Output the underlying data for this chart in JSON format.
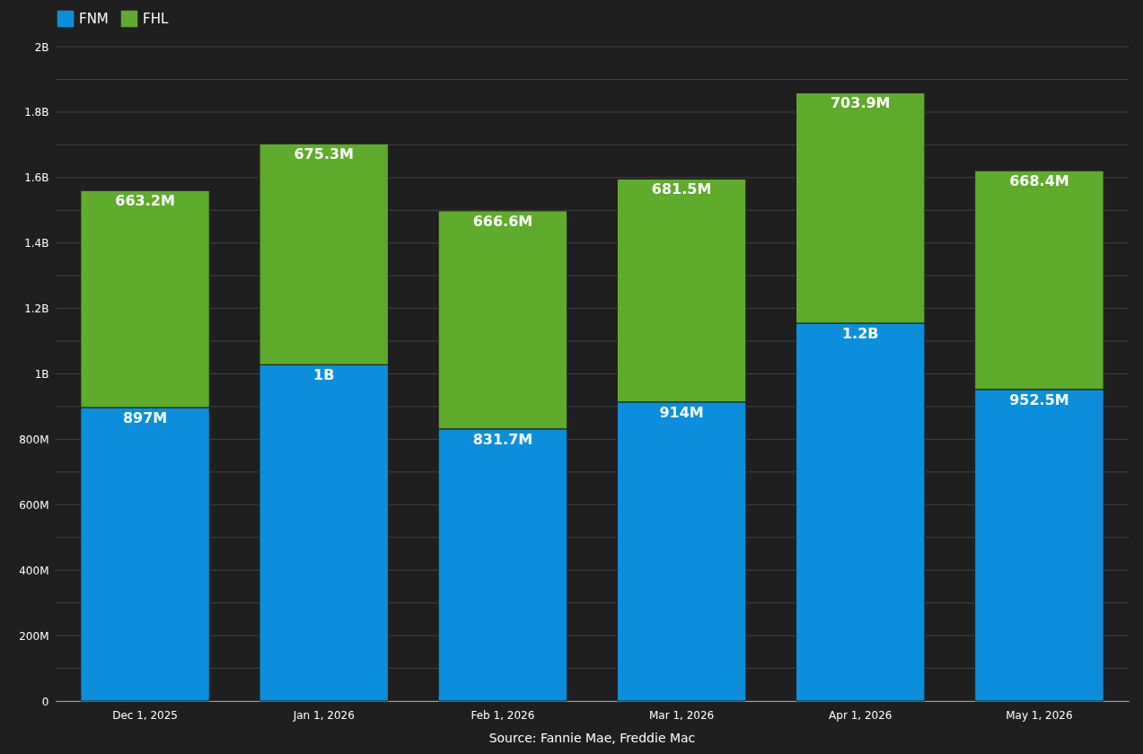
{
  "chart_data": {
    "type": "bar",
    "stacked": true,
    "categories": [
      "Dec 1, 2025",
      "Jan 1, 2026",
      "Feb 1, 2026",
      "Mar 1, 2026",
      "Apr 1, 2026",
      "May 1, 2026"
    ],
    "series": [
      {
        "name": "FNM",
        "color": "#0b8fdc",
        "values": [
          897000000,
          1028000000,
          831700000,
          914000000,
          1155000000,
          952500000
        ],
        "value_labels": [
          "897M",
          "1B",
          "831.7M",
          "914M",
          "1.2B",
          "952.5M"
        ]
      },
      {
        "name": "FHL",
        "color": "#5fab2b",
        "values": [
          663200000,
          675300000,
          666600000,
          681500000,
          703900000,
          668400000
        ],
        "value_labels": [
          "663.2M",
          "675.3M",
          "666.6M",
          "681.5M",
          "703.9M",
          "668.4M"
        ]
      }
    ],
    "ylim": [
      0,
      2000000000
    ],
    "yticks": [
      0,
      {
        "value": 100000000,
        "label": null
      },
      {
        "value": 200000000,
        "label": "200M"
      },
      {
        "value": 300000000,
        "label": null
      },
      {
        "value": 400000000,
        "label": "400M"
      },
      {
        "value": 500000000,
        "label": null
      },
      {
        "value": 600000000,
        "label": "600M"
      },
      {
        "value": 700000000,
        "label": null
      },
      {
        "value": 800000000,
        "label": "800M"
      },
      {
        "value": 900000000,
        "label": null
      },
      {
        "value": 1000000000,
        "label": "1B"
      },
      {
        "value": 1100000000,
        "label": null
      },
      {
        "value": 1200000000,
        "label": "1.2B"
      },
      {
        "value": 1300000000,
        "label": null
      },
      {
        "value": 1400000000,
        "label": "1.4B"
      },
      {
        "value": 1500000000,
        "label": null
      },
      {
        "value": 1600000000,
        "label": "1.6B"
      },
      {
        "value": 1700000000,
        "label": null
      },
      {
        "value": 1800000000,
        "label": "1.8B"
      },
      {
        "value": 1900000000,
        "label": null
      },
      {
        "value": 2000000000,
        "label": "2B"
      }
    ],
    "grid": "y",
    "legend": "top left",
    "annotations": [
      "Source: Fannie Mae, Freddie Mac"
    ]
  }
}
